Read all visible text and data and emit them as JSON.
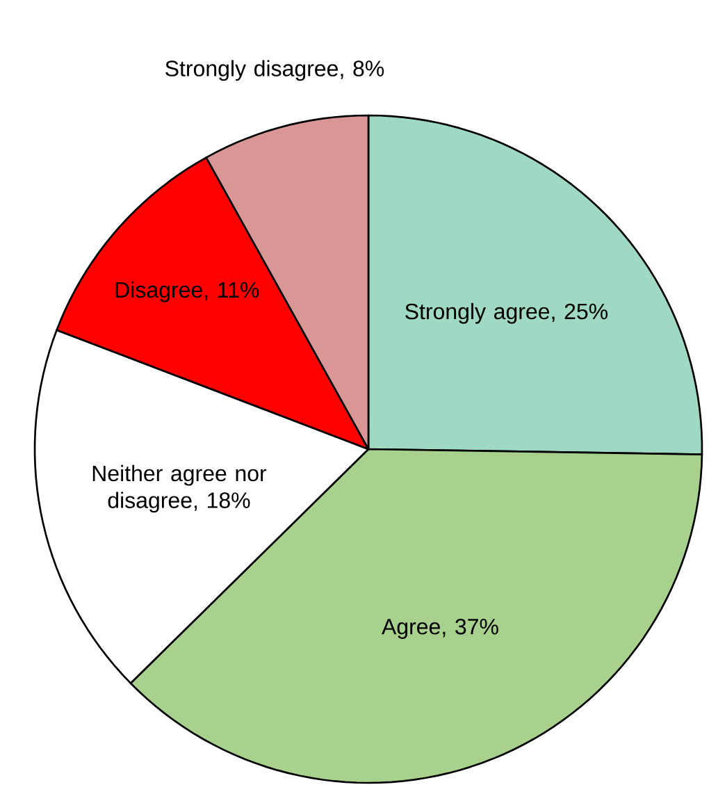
{
  "chart_data": {
    "type": "pie",
    "categories": [
      "Strongly agree",
      "Agree",
      "Neither agree nor disagree",
      "Disagree",
      "Strongly disagree"
    ],
    "values": [
      25,
      37,
      18,
      11,
      8
    ],
    "value_labels": [
      ", 25%",
      ", 37%",
      ", 18%",
      ", 11%",
      ", 8%"
    ],
    "colors": [
      "#9fd9c4",
      "#a9d18e",
      "#ffffff",
      "#ff0000",
      "#d99694"
    ]
  }
}
